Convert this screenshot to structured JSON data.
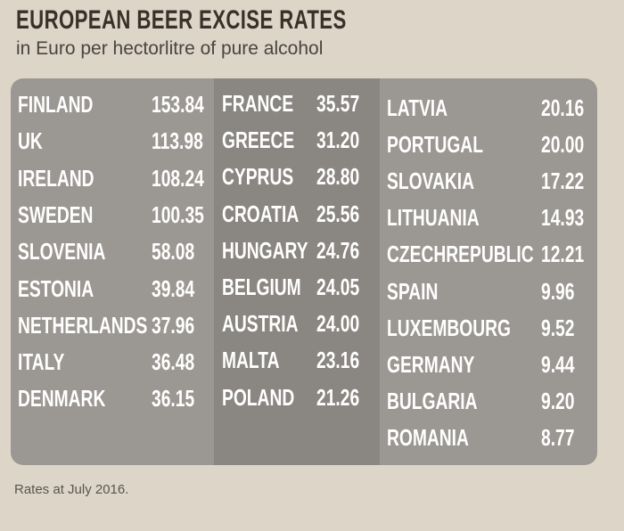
{
  "header": {
    "title": "EUROPEAN BEER EXCISE RATES",
    "subtitle": "in Euro per hectorlitre of pure alcohol"
  },
  "table": {
    "columns": [
      [
        [
          "FINLAND",
          "153.84"
        ],
        [
          "UK",
          "113.98"
        ],
        [
          "IRELAND",
          "108.24"
        ],
        [
          "SWEDEN",
          "100.35"
        ],
        [
          "SLOVENIA",
          "58.08"
        ],
        [
          "ESTONIA",
          "39.84"
        ],
        [
          "NETHERLANDS",
          "37.96"
        ],
        [
          "ITALY",
          "36.48"
        ],
        [
          "DENMARK",
          "36.15"
        ]
      ],
      [
        [
          "FRANCE",
          "35.57"
        ],
        [
          "GREECE",
          "31.20"
        ],
        [
          "CYPRUS",
          "28.80"
        ],
        [
          "CROATIA",
          "25.56"
        ],
        [
          "HUNGARY",
          "24.76"
        ],
        [
          "BELGIUM",
          "24.05"
        ],
        [
          "AUSTRIA",
          "24.00"
        ],
        [
          "MALTA",
          "23.16"
        ],
        [
          "POLAND",
          "21.26"
        ]
      ],
      [
        [
          "LATVIA",
          "20.16"
        ],
        [
          "PORTUGAL",
          "20.00"
        ],
        [
          "SLOVAKIA",
          "17.22"
        ],
        [
          "LITHUANIA",
          "14.93"
        ],
        [
          "CZECHREPUBLIC",
          "12.21"
        ],
        [
          "SPAIN",
          "9.96"
        ],
        [
          "LUXEMBOURG",
          "9.52"
        ],
        [
          "GERMANY",
          "9.44"
        ],
        [
          "BULGARIA",
          "9.20"
        ],
        [
          "ROMANIA",
          "8.77"
        ]
      ]
    ]
  },
  "footer": {
    "note": "Rates at July 2016."
  }
}
